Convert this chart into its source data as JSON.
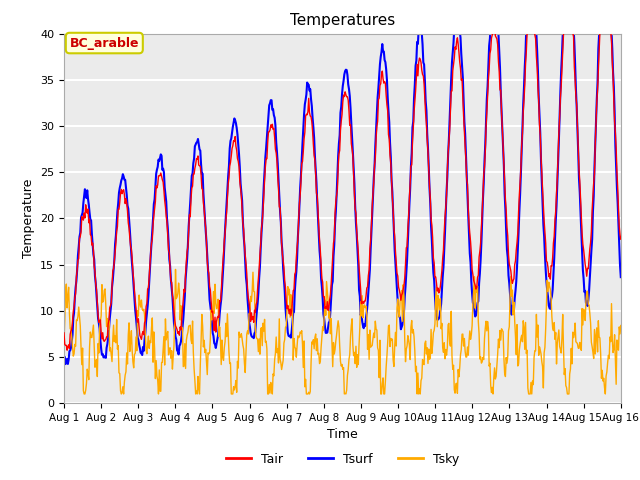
{
  "title": "Temperatures",
  "xlabel": "Time",
  "ylabel": "Temperature",
  "ylim": [
    0,
    40
  ],
  "tair_color": "#ff0000",
  "tsurf_color": "#0000ff",
  "tsky_color": "#ffaa00",
  "annotation_text": "BC_arable",
  "annotation_color": "#cc0000",
  "annotation_bg": "#ffffdd",
  "xtick_labels": [
    "Aug 1",
    "Aug 2",
    "Aug 3",
    "Aug 4",
    "Aug 5",
    "Aug 6",
    "Aug 7",
    "Aug 8",
    "Aug 9",
    "Aug 10",
    "Aug 11",
    "Aug 12",
    "Aug 13",
    "Aug 14",
    "Aug 15",
    "Aug 16"
  ],
  "legend_labels": [
    "Tair",
    "Tsurf",
    "Tsky"
  ],
  "plot_bg_color": "#ebebeb",
  "n_points": 720,
  "days": 15,
  "tair_lw": 1.0,
  "tsurf_lw": 1.5,
  "tsky_lw": 1.0
}
